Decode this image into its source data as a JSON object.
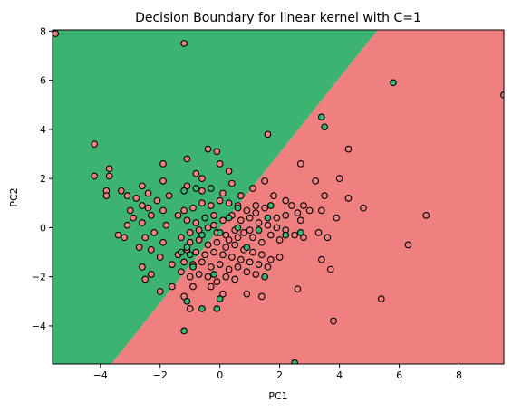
{
  "chart_data": {
    "type": "scatter",
    "title": "Decision Boundary for linear kernel with C=1",
    "xlabel": "PC1",
    "ylabel": "PC2",
    "xlim": [
      -5.6,
      9.5
    ],
    "ylim": [
      -5.55,
      8.05
    ],
    "xticks": [
      -4,
      -2,
      0,
      2,
      4,
      6,
      8
    ],
    "yticks": [
      -4,
      -2,
      0,
      2,
      4,
      6,
      8
    ],
    "grid": false,
    "legend": "none",
    "colors": {
      "region_green": "#3cb371",
      "region_red": "#f08080",
      "point_green": "#3cb371",
      "point_red": "#f08080",
      "edge": "#000000"
    },
    "boundary": {
      "points": [
        [
          -3.63,
          -5.55
        ],
        [
          5.28,
          8.05
        ]
      ]
    },
    "series": [
      {
        "color": "#f08080",
        "points": [
          [
            -5.5,
            7.9
          ],
          [
            -1.2,
            7.5
          ],
          [
            9.5,
            5.4
          ],
          [
            4.3,
            3.2
          ],
          [
            2.7,
            2.6
          ],
          [
            1.6,
            3.8
          ],
          [
            4.0,
            2.0
          ],
          [
            3.2,
            1.9
          ],
          [
            3.5,
            1.3
          ],
          [
            4.3,
            1.2
          ],
          [
            4.8,
            0.8
          ],
          [
            3.9,
            0.4
          ],
          [
            6.9,
            0.5
          ],
          [
            6.3,
            -0.7
          ],
          [
            3.3,
            -0.2
          ],
          [
            3.6,
            -0.4
          ],
          [
            3.4,
            -1.3
          ],
          [
            3.7,
            -1.7
          ],
          [
            2.6,
            -2.5
          ],
          [
            5.4,
            -2.9
          ],
          [
            3.8,
            -3.8
          ],
          [
            -0.8,
            2.2
          ],
          [
            -0.4,
            3.2
          ],
          [
            -0.1,
            3.1
          ],
          [
            0.0,
            2.6
          ],
          [
            -1.9,
            2.6
          ],
          [
            -1.1,
            1.7
          ],
          [
            -0.6,
            1.5
          ],
          [
            0.1,
            1.4
          ],
          [
            0.4,
            1.8
          ],
          [
            0.7,
            1.3
          ],
          [
            1.1,
            1.6
          ],
          [
            1.5,
            1.9
          ],
          [
            1.8,
            1.3
          ],
          [
            2.2,
            1.1
          ],
          [
            2.4,
            0.9
          ],
          [
            2.8,
            0.9
          ],
          [
            3.0,
            0.7
          ],
          [
            3.4,
            0.7
          ],
          [
            2.6,
            0.6
          ],
          [
            2.2,
            0.5
          ],
          [
            1.9,
            0.4
          ],
          [
            1.5,
            0.8
          ],
          [
            1.2,
            0.9
          ],
          [
            0.9,
            0.7
          ],
          [
            0.6,
            0.9
          ],
          [
            0.3,
            1.0
          ],
          [
            0.0,
            1.1
          ],
          [
            -0.3,
            0.9
          ],
          [
            -0.6,
            1.0
          ],
          [
            -0.9,
            0.8
          ],
          [
            -1.2,
            0.7
          ],
          [
            -1.4,
            0.5
          ],
          [
            -1.1,
            0.3
          ],
          [
            -0.8,
            0.2
          ],
          [
            -0.5,
            0.4
          ],
          [
            -0.2,
            0.5
          ],
          [
            0.1,
            0.3
          ],
          [
            0.4,
            0.5
          ],
          [
            0.7,
            0.3
          ],
          [
            1.0,
            0.4
          ],
          [
            1.3,
            0.2
          ],
          [
            1.6,
            0.1
          ],
          [
            1.9,
            0.0
          ],
          [
            2.2,
            -0.1
          ],
          [
            2.5,
            -0.3
          ],
          [
            2.8,
            -0.4
          ],
          [
            2.0,
            -0.5
          ],
          [
            1.7,
            -0.3
          ],
          [
            1.4,
            -0.6
          ],
          [
            1.1,
            -0.4
          ],
          [
            0.8,
            -0.2
          ],
          [
            0.5,
            -0.1
          ],
          [
            0.2,
            -0.3
          ],
          [
            -0.1,
            -0.2
          ],
          [
            -0.4,
            0.0
          ],
          [
            -0.7,
            -0.1
          ],
          [
            -1.0,
            -0.2
          ],
          [
            -1.3,
            -0.4
          ],
          [
            -1.0,
            -0.6
          ],
          [
            -0.7,
            -0.5
          ],
          [
            -0.4,
            -0.7
          ],
          [
            -0.1,
            -0.6
          ],
          [
            0.2,
            -0.8
          ],
          [
            0.5,
            -0.7
          ],
          [
            0.8,
            -0.9
          ],
          [
            1.1,
            -1.0
          ],
          [
            1.4,
            -1.1
          ],
          [
            1.7,
            -1.3
          ],
          [
            2.0,
            -1.2
          ],
          [
            1.6,
            -1.6
          ],
          [
            1.3,
            -1.5
          ],
          [
            1.0,
            -1.4
          ],
          [
            0.7,
            -1.3
          ],
          [
            0.4,
            -1.2
          ],
          [
            0.1,
            -1.1
          ],
          [
            -0.2,
            -1.0
          ],
          [
            -0.5,
            -1.1
          ],
          [
            -0.8,
            -1.0
          ],
          [
            -1.1,
            -0.9
          ],
          [
            -1.4,
            -1.1
          ],
          [
            -1.2,
            -1.4
          ],
          [
            -0.9,
            -1.5
          ],
          [
            -0.6,
            -1.4
          ],
          [
            -0.3,
            -1.6
          ],
          [
            0.0,
            -1.5
          ],
          [
            0.3,
            -1.7
          ],
          [
            0.6,
            -1.6
          ],
          [
            0.9,
            -1.8
          ],
          [
            1.2,
            -1.9
          ],
          [
            0.5,
            -2.1
          ],
          [
            0.2,
            -2.0
          ],
          [
            -0.1,
            -2.2
          ],
          [
            -0.4,
            -2.0
          ],
          [
            -0.7,
            -1.9
          ],
          [
            -1.0,
            -2.0
          ],
          [
            -1.3,
            -1.8
          ],
          [
            -0.9,
            -2.4
          ],
          [
            0.1,
            -2.7
          ],
          [
            0.9,
            -2.7
          ],
          [
            1.4,
            -2.8
          ],
          [
            -2.3,
            -1.9
          ],
          [
            -2.6,
            -1.6
          ],
          [
            -2.0,
            -1.2
          ],
          [
            -2.3,
            -0.9
          ],
          [
            -1.9,
            -0.6
          ],
          [
            -2.5,
            -0.4
          ],
          [
            -2.2,
            -0.2
          ],
          [
            -1.8,
            0.1
          ],
          [
            -2.6,
            0.2
          ],
          [
            -2.3,
            0.5
          ],
          [
            -1.9,
            0.7
          ],
          [
            -2.6,
            0.9
          ],
          [
            -2.1,
            1.1
          ],
          [
            -1.7,
            1.3
          ],
          [
            -2.4,
            1.4
          ],
          [
            -2.8,
            1.2
          ],
          [
            -3.0,
            0.7
          ],
          [
            -3.1,
            0.1
          ],
          [
            -3.2,
            -0.4
          ],
          [
            -3.4,
            -0.3
          ],
          [
            -2.7,
            -0.8
          ],
          [
            -1.6,
            -1.5
          ],
          [
            -2.0,
            -2.6
          ],
          [
            -2.5,
            -2.1
          ],
          [
            -1.6,
            -2.4
          ],
          [
            -0.3,
            -2.4
          ],
          [
            -1.1,
            2.8
          ],
          [
            -0.6,
            2.0
          ],
          [
            0.3,
            2.3
          ],
          [
            -4.2,
            3.4
          ],
          [
            -4.2,
            2.1
          ],
          [
            -3.7,
            2.4
          ],
          [
            -3.7,
            2.1
          ],
          [
            -3.8,
            1.5
          ],
          [
            -3.8,
            1.3
          ],
          [
            -3.3,
            1.5
          ],
          [
            -3.1,
            1.3
          ],
          [
            -2.6,
            1.7
          ],
          [
            -1.9,
            1.9
          ],
          [
            -2.4,
            0.8
          ],
          [
            -2.9,
            0.4
          ],
          [
            -1.2,
            -2.8
          ],
          [
            -1.0,
            -3.3
          ],
          [
            1.0,
            -0.1
          ],
          [
            0.6,
            -0.4
          ],
          [
            -0.2,
            0.1
          ],
          [
            1.2,
            0.6
          ],
          [
            0.3,
            -0.5
          ],
          [
            2.7,
            0.3
          ]
        ]
      },
      {
        "color": "#3cb371",
        "points": [
          [
            5.8,
            5.9
          ],
          [
            3.4,
            4.5
          ],
          [
            3.5,
            4.1
          ],
          [
            2.5,
            -5.5
          ],
          [
            -1.2,
            -4.2
          ],
          [
            -0.1,
            -3.3
          ],
          [
            0.0,
            -2.9
          ],
          [
            -0.6,
            -3.3
          ],
          [
            -1.1,
            -3.0
          ],
          [
            1.5,
            -2.0
          ],
          [
            -0.2,
            -1.9
          ],
          [
            -1.0,
            -1.1
          ],
          [
            1.7,
            0.9
          ],
          [
            0.6,
            0.8
          ],
          [
            -0.3,
            1.6
          ],
          [
            -0.8,
            1.6
          ],
          [
            -1.1,
            -0.8
          ],
          [
            0.9,
            -0.8
          ],
          [
            0.6,
            0.0
          ],
          [
            -0.5,
            0.4
          ],
          [
            0.0,
            -0.2
          ],
          [
            1.3,
            -0.1
          ],
          [
            2.2,
            -0.3
          ],
          [
            2.7,
            -0.2
          ],
          [
            -1.2,
            1.5
          ],
          [
            -0.6,
            -0.3
          ],
          [
            0.3,
            0.4
          ],
          [
            1.6,
            0.4
          ],
          [
            -1.3,
            -1.0
          ],
          [
            -0.9,
            -1.6
          ]
        ]
      }
    ]
  }
}
